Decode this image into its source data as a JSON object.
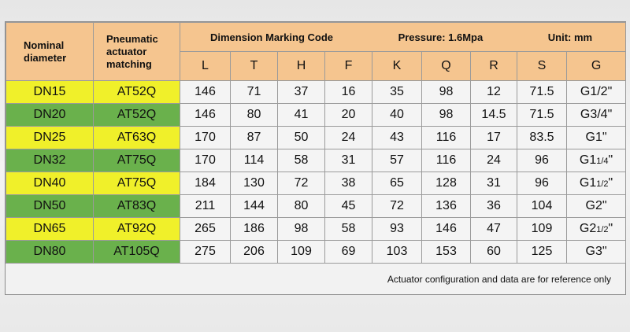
{
  "header": {
    "nominal_diameter": "Nominal diameter",
    "actuator_matching": "Pneumatic actuator matching",
    "dimension_code": "Dimension Marking Code",
    "pressure": "Pressure: 1.6Mpa",
    "unit": "Unit: mm",
    "columns": [
      "L",
      "T",
      "H",
      "F",
      "K",
      "Q",
      "R",
      "S",
      "G"
    ]
  },
  "rows": [
    {
      "dn": "DN15",
      "actuator": "AT52Q",
      "values": [
        "146",
        "71",
        "37",
        "16",
        "35",
        "98",
        "12",
        "71.5"
      ],
      "g_main": "G1/2\"",
      "g_frac": "",
      "g_suffix": "",
      "color": "yellow"
    },
    {
      "dn": "DN20",
      "actuator": "AT52Q",
      "values": [
        "146",
        "80",
        "41",
        "20",
        "40",
        "98",
        "14.5",
        "71.5"
      ],
      "g_main": "G3/4\"",
      "g_frac": "",
      "g_suffix": "",
      "color": "green"
    },
    {
      "dn": "DN25",
      "actuator": "AT63Q",
      "values": [
        "170",
        "87",
        "50",
        "24",
        "43",
        "116",
        "17",
        "83.5"
      ],
      "g_main": "G1\"",
      "g_frac": "",
      "g_suffix": "",
      "color": "yellow"
    },
    {
      "dn": "DN32",
      "actuator": "AT75Q",
      "values": [
        "170",
        "114",
        "58",
        "31",
        "57",
        "116",
        "24",
        "96"
      ],
      "g_main": "G1",
      "g_frac": "1/4",
      "g_suffix": "\"",
      "color": "green"
    },
    {
      "dn": "DN40",
      "actuator": "AT75Q",
      "values": [
        "184",
        "130",
        "72",
        "38",
        "65",
        "128",
        "31",
        "96"
      ],
      "g_main": "G1",
      "g_frac": "1/2",
      "g_suffix": "\"",
      "color": "yellow"
    },
    {
      "dn": "DN50",
      "actuator": "AT83Q",
      "values": [
        "211",
        "144",
        "80",
        "45",
        "72",
        "136",
        "36",
        "104"
      ],
      "g_main": "G2\"",
      "g_frac": "",
      "g_suffix": "",
      "color": "green"
    },
    {
      "dn": "DN65",
      "actuator": "AT92Q",
      "values": [
        "265",
        "186",
        "98",
        "58",
        "93",
        "146",
        "47",
        "109"
      ],
      "g_main": "G2",
      "g_frac": "1/2",
      "g_suffix": "\"",
      "color": "yellow"
    },
    {
      "dn": "DN80",
      "actuator": "AT105Q",
      "values": [
        "275",
        "206",
        "109",
        "69",
        "103",
        "153",
        "60",
        "125"
      ],
      "g_main": "G3\"",
      "g_frac": "",
      "g_suffix": "",
      "color": "green"
    }
  ],
  "footer_note": "Actuator configuration and data are for reference only",
  "colors": {
    "header": "#f5c58f",
    "yellow": "#f0f02a",
    "green": "#6ab14c"
  }
}
